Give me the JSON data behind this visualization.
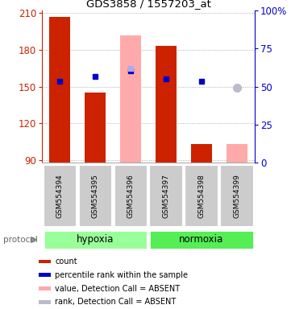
{
  "title": "GDS3858 / 1557203_at",
  "samples": [
    "GSM554394",
    "GSM554395",
    "GSM554396",
    "GSM554397",
    "GSM554398",
    "GSM554399"
  ],
  "ylim_left": [
    88,
    212
  ],
  "ylim_right": [
    0,
    100
  ],
  "yticks_left": [
    90,
    120,
    150,
    180,
    210
  ],
  "yticks_right": [
    0,
    25,
    50,
    75,
    100
  ],
  "bar_bottom": 88,
  "red_bars": [
    207,
    145,
    null,
    183,
    103,
    null
  ],
  "pink_bars": [
    null,
    null,
    192,
    null,
    null,
    103
  ],
  "blue_squares": [
    154,
    158,
    163,
    156,
    154,
    null
  ],
  "blue_square_absent": [
    null,
    null,
    165,
    null,
    null,
    null
  ],
  "lavender_dot": [
    null,
    null,
    null,
    null,
    null,
    149
  ],
  "group_colors": {
    "hypoxia": "#99ff99",
    "normoxia": "#55ee55"
  },
  "bar_color_red": "#cc2200",
  "bar_color_pink": "#ffaaaa",
  "bar_color_blue": "#0000cc",
  "bar_color_blue_absent": "#aaaaee",
  "bar_color_lavender": "#bbbbcc",
  "bar_width": 0.6,
  "grid_color": "#999999",
  "left_axis_color": "#cc2200",
  "right_axis_color": "#0000cc",
  "sample_box_color": "#cccccc",
  "protocol_label": "protocol",
  "hypoxia_label": "hypoxia",
  "normoxia_label": "normoxia",
  "legend_items": [
    {
      "color": "#cc2200",
      "label": "count"
    },
    {
      "color": "#0000cc",
      "label": "percentile rank within the sample"
    },
    {
      "color": "#ffaaaa",
      "label": "value, Detection Call = ABSENT"
    },
    {
      "color": "#bbbbcc",
      "label": "rank, Detection Call = ABSENT"
    }
  ]
}
